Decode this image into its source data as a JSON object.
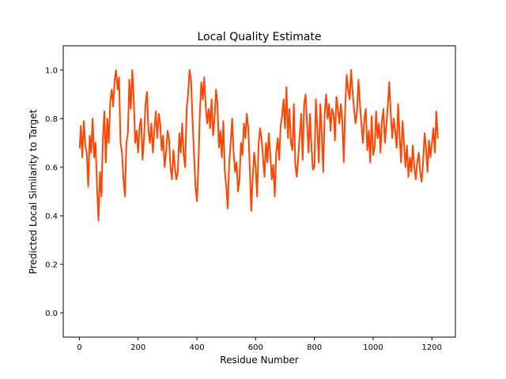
{
  "chart_data": {
    "type": "line",
    "title": "Local Quality Estimate",
    "xlabel": "Residue Number",
    "ylabel": "Predicted Local Similarity to Target",
    "xlim": [
      -55,
      1280
    ],
    "ylim": [
      -0.1,
      1.1
    ],
    "xticks": [
      0,
      200,
      400,
      600,
      800,
      1000,
      1200
    ],
    "yticks": [
      0.0,
      0.2,
      0.4,
      0.6,
      0.8,
      1.0
    ],
    "xtick_labels": [
      "0",
      "200",
      "400",
      "600",
      "800",
      "1000",
      "1200"
    ],
    "ytick_labels": [
      "0.0",
      "0.2",
      "0.4",
      "0.6",
      "0.8",
      "1.0"
    ],
    "grid": false,
    "series": [
      {
        "color": "#ff4500",
        "x": [
          1,
          5,
          10,
          15,
          20,
          25,
          30,
          35,
          40,
          45,
          50,
          55,
          60,
          65,
          70,
          75,
          80,
          85,
          90,
          95,
          100,
          105,
          110,
          115,
          120,
          125,
          130,
          135,
          140,
          145,
          150,
          155,
          160,
          165,
          170,
          175,
          180,
          185,
          190,
          195,
          200,
          205,
          210,
          215,
          220,
          225,
          230,
          235,
          240,
          245,
          250,
          255,
          260,
          265,
          270,
          275,
          280,
          285,
          290,
          295,
          300,
          305,
          310,
          315,
          320,
          325,
          330,
          335,
          340,
          345,
          350,
          355,
          360,
          365,
          370,
          375,
          380,
          385,
          390,
          395,
          400,
          405,
          410,
          415,
          420,
          425,
          430,
          435,
          440,
          445,
          450,
          455,
          460,
          465,
          470,
          475,
          480,
          485,
          490,
          495,
          500,
          505,
          510,
          515,
          520,
          525,
          530,
          535,
          540,
          545,
          550,
          555,
          560,
          565,
          570,
          575,
          580,
          585,
          590,
          595,
          600,
          605,
          610,
          615,
          620,
          625,
          630,
          635,
          640,
          645,
          650,
          655,
          660,
          665,
          670,
          675,
          680,
          685,
          690,
          695,
          700,
          705,
          710,
          715,
          720,
          725,
          730,
          735,
          740,
          745,
          750,
          755,
          760,
          765,
          770,
          775,
          780,
          785,
          790,
          795,
          800,
          805,
          810,
          815,
          820,
          825,
          830,
          835,
          840,
          845,
          850,
          855,
          860,
          865,
          870,
          875,
          880,
          885,
          890,
          895,
          900,
          905,
          910,
          915,
          920,
          925,
          930,
          935,
          940,
          945,
          950,
          955,
          960,
          965,
          970,
          975,
          980,
          985,
          990,
          995,
          1000,
          1005,
          1010,
          1015,
          1020,
          1025,
          1030,
          1035,
          1040,
          1045,
          1050,
          1055,
          1060,
          1065,
          1070,
          1075,
          1080,
          1085,
          1090,
          1095,
          1100,
          1105,
          1110,
          1115,
          1120,
          1125,
          1130,
          1135,
          1140,
          1145,
          1150,
          1155,
          1160,
          1165,
          1170,
          1175,
          1180,
          1185,
          1190,
          1195,
          1200,
          1205,
          1210,
          1215,
          1220
        ],
        "y": [
          0.68,
          0.77,
          0.64,
          0.79,
          0.69,
          0.66,
          0.52,
          0.73,
          0.66,
          0.8,
          0.64,
          0.7,
          0.52,
          0.38,
          0.58,
          0.48,
          0.72,
          0.83,
          0.62,
          0.8,
          0.7,
          0.87,
          0.92,
          0.85,
          0.96,
          1.0,
          0.92,
          0.97,
          0.7,
          0.66,
          0.55,
          0.48,
          0.7,
          0.74,
          0.96,
          0.84,
          1.0,
          0.88,
          0.7,
          0.75,
          0.66,
          0.77,
          0.8,
          0.63,
          0.72,
          0.86,
          0.91,
          0.75,
          0.7,
          0.78,
          0.66,
          0.75,
          0.83,
          0.72,
          0.82,
          0.78,
          0.67,
          0.73,
          0.6,
          0.66,
          0.75,
          0.72,
          0.6,
          0.55,
          0.67,
          0.6,
          0.55,
          0.58,
          0.74,
          0.66,
          0.78,
          0.65,
          0.6,
          0.84,
          0.9,
          1.0,
          0.96,
          0.8,
          0.66,
          0.52,
          0.46,
          0.6,
          0.82,
          0.95,
          0.88,
          0.97,
          0.85,
          0.78,
          0.84,
          0.76,
          0.88,
          0.73,
          0.8,
          0.92,
          0.86,
          0.68,
          0.75,
          0.64,
          0.79,
          0.58,
          0.52,
          0.43,
          0.62,
          0.7,
          0.8,
          0.66,
          0.58,
          0.62,
          0.5,
          0.55,
          0.7,
          0.65,
          0.78,
          0.72,
          0.82,
          0.76,
          0.6,
          0.42,
          0.56,
          0.66,
          0.6,
          0.48,
          0.69,
          0.76,
          0.72,
          0.64,
          0.56,
          0.7,
          0.62,
          0.74,
          0.65,
          0.55,
          0.61,
          0.48,
          0.66,
          0.72,
          0.63,
          0.77,
          0.81,
          0.88,
          0.76,
          0.93,
          0.72,
          0.84,
          0.7,
          0.67,
          0.86,
          0.61,
          0.56,
          0.64,
          0.73,
          0.82,
          0.63,
          0.86,
          0.9,
          0.78,
          0.66,
          0.82,
          0.68,
          0.59,
          0.6,
          0.88,
          0.76,
          0.62,
          0.86,
          0.74,
          0.58,
          0.82,
          0.9,
          0.8,
          0.86,
          0.75,
          0.84,
          0.82,
          0.71,
          0.89,
          0.84,
          0.78,
          0.86,
          0.79,
          0.62,
          0.85,
          0.98,
          0.92,
          0.88,
          1.0,
          0.91,
          0.84,
          0.78,
          0.83,
          0.96,
          0.86,
          0.78,
          0.7,
          0.8,
          0.84,
          0.67,
          0.75,
          0.62,
          0.81,
          0.65,
          0.68,
          0.83,
          0.72,
          0.78,
          0.66,
          0.79,
          0.84,
          0.7,
          0.77,
          0.86,
          0.95,
          0.82,
          0.72,
          0.8,
          0.75,
          0.68,
          0.86,
          0.73,
          0.62,
          0.79,
          0.7,
          0.6,
          0.69,
          0.56,
          0.64,
          0.58,
          0.69,
          0.6,
          0.55,
          0.62,
          0.66,
          0.58,
          0.54,
          0.62,
          0.74,
          0.68,
          0.58,
          0.71,
          0.64,
          0.7,
          0.76,
          0.66,
          0.83,
          0.72
        ]
      }
    ]
  }
}
